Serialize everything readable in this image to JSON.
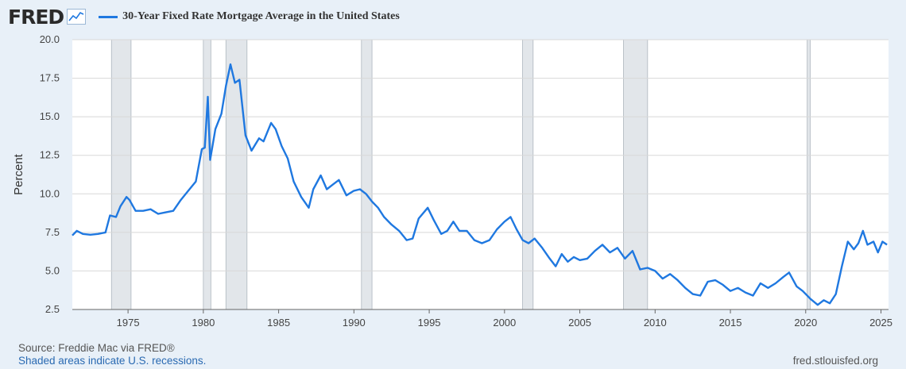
{
  "header": {
    "logo": "FRED",
    "series_title": "30-Year Fixed Rate Mortgage Average in the United States"
  },
  "footer": {
    "source": "Source: Freddie Mac via FRED®",
    "recession_note": "Shaded areas indicate U.S. recessions.",
    "site": "fred.stlouisfed.org"
  },
  "colors": {
    "series": "#1f78e0",
    "recession_shade": "#e2e6ea",
    "grid": "#d8d8d8",
    "background": "#e8f0f8",
    "plot_background": "#ffffff"
  },
  "chart_data": {
    "type": "line",
    "title": "30-Year Fixed Rate Mortgage Average in the United States",
    "ylabel": "Percent",
    "xlabel": "",
    "xlim": [
      1971.3,
      2025.5
    ],
    "ylim": [
      2.5,
      20.0
    ],
    "y_ticks": [
      "2.5",
      "5.0",
      "7.5",
      "10.0",
      "12.5",
      "15.0",
      "17.5",
      "20.0"
    ],
    "x_ticks": [
      "1975",
      "1980",
      "1985",
      "1990",
      "1995",
      "2000",
      "2005",
      "2010",
      "2015",
      "2020",
      "2025"
    ],
    "grid": true,
    "recessions": [
      [
        1973.9,
        1975.2
      ],
      [
        1980.0,
        1980.5
      ],
      [
        1981.5,
        1982.9
      ],
      [
        1990.5,
        1991.2
      ],
      [
        2001.2,
        2001.9
      ],
      [
        2007.9,
        2009.5
      ],
      [
        2020.1,
        2020.3
      ]
    ],
    "series": [
      {
        "name": "30-Year Fixed Rate Mortgage Average in the United States",
        "points": [
          [
            1971.3,
            7.3
          ],
          [
            1971.6,
            7.6
          ],
          [
            1972.0,
            7.4
          ],
          [
            1972.5,
            7.35
          ],
          [
            1973.0,
            7.4
          ],
          [
            1973.5,
            7.5
          ],
          [
            1973.8,
            8.6
          ],
          [
            1974.2,
            8.5
          ],
          [
            1974.5,
            9.2
          ],
          [
            1974.9,
            9.8
          ],
          [
            1975.1,
            9.6
          ],
          [
            1975.5,
            8.9
          ],
          [
            1976.0,
            8.9
          ],
          [
            1976.5,
            9.0
          ],
          [
            1977.0,
            8.7
          ],
          [
            1977.5,
            8.8
          ],
          [
            1978.0,
            8.9
          ],
          [
            1978.5,
            9.6
          ],
          [
            1979.0,
            10.2
          ],
          [
            1979.5,
            10.8
          ],
          [
            1979.9,
            12.9
          ],
          [
            1980.1,
            13.0
          ],
          [
            1980.3,
            16.3
          ],
          [
            1980.45,
            12.2
          ],
          [
            1980.8,
            14.2
          ],
          [
            1981.2,
            15.2
          ],
          [
            1981.5,
            17.0
          ],
          [
            1981.8,
            18.4
          ],
          [
            1982.1,
            17.2
          ],
          [
            1982.4,
            17.4
          ],
          [
            1982.8,
            13.8
          ],
          [
            1983.2,
            12.8
          ],
          [
            1983.7,
            13.6
          ],
          [
            1984.0,
            13.4
          ],
          [
            1984.5,
            14.6
          ],
          [
            1984.8,
            14.2
          ],
          [
            1985.2,
            13.1
          ],
          [
            1985.6,
            12.3
          ],
          [
            1986.0,
            10.8
          ],
          [
            1986.5,
            9.8
          ],
          [
            1987.0,
            9.1
          ],
          [
            1987.3,
            10.3
          ],
          [
            1987.8,
            11.2
          ],
          [
            1988.2,
            10.3
          ],
          [
            1988.6,
            10.6
          ],
          [
            1989.0,
            10.9
          ],
          [
            1989.5,
            9.9
          ],
          [
            1990.0,
            10.2
          ],
          [
            1990.4,
            10.3
          ],
          [
            1990.8,
            10.0
          ],
          [
            1991.2,
            9.5
          ],
          [
            1991.6,
            9.1
          ],
          [
            1992.0,
            8.5
          ],
          [
            1992.5,
            8.0
          ],
          [
            1993.0,
            7.6
          ],
          [
            1993.5,
            7.0
          ],
          [
            1993.9,
            7.1
          ],
          [
            1994.3,
            8.4
          ],
          [
            1994.9,
            9.1
          ],
          [
            1995.3,
            8.3
          ],
          [
            1995.8,
            7.4
          ],
          [
            1996.2,
            7.6
          ],
          [
            1996.6,
            8.2
          ],
          [
            1997.0,
            7.6
          ],
          [
            1997.5,
            7.6
          ],
          [
            1998.0,
            7.0
          ],
          [
            1998.5,
            6.8
          ],
          [
            1999.0,
            7.0
          ],
          [
            1999.5,
            7.7
          ],
          [
            2000.0,
            8.2
          ],
          [
            2000.4,
            8.5
          ],
          [
            2000.8,
            7.7
          ],
          [
            2001.2,
            7.0
          ],
          [
            2001.6,
            6.8
          ],
          [
            2002.0,
            7.1
          ],
          [
            2002.5,
            6.5
          ],
          [
            2003.0,
            5.8
          ],
          [
            2003.4,
            5.3
          ],
          [
            2003.8,
            6.1
          ],
          [
            2004.2,
            5.6
          ],
          [
            2004.6,
            5.9
          ],
          [
            2005.0,
            5.7
          ],
          [
            2005.5,
            5.8
          ],
          [
            2006.0,
            6.3
          ],
          [
            2006.5,
            6.7
          ],
          [
            2007.0,
            6.2
          ],
          [
            2007.5,
            6.5
          ],
          [
            2008.0,
            5.8
          ],
          [
            2008.5,
            6.3
          ],
          [
            2009.0,
            5.1
          ],
          [
            2009.5,
            5.2
          ],
          [
            2010.0,
            5.0
          ],
          [
            2010.5,
            4.5
          ],
          [
            2011.0,
            4.8
          ],
          [
            2011.5,
            4.4
          ],
          [
            2012.0,
            3.9
          ],
          [
            2012.5,
            3.5
          ],
          [
            2013.0,
            3.4
          ],
          [
            2013.5,
            4.3
          ],
          [
            2014.0,
            4.4
          ],
          [
            2014.5,
            4.1
          ],
          [
            2015.0,
            3.7
          ],
          [
            2015.5,
            3.9
          ],
          [
            2016.0,
            3.6
          ],
          [
            2016.5,
            3.4
          ],
          [
            2017.0,
            4.2
          ],
          [
            2017.5,
            3.9
          ],
          [
            2018.0,
            4.2
          ],
          [
            2018.5,
            4.6
          ],
          [
            2018.9,
            4.9
          ],
          [
            2019.4,
            4.0
          ],
          [
            2019.8,
            3.7
          ],
          [
            2020.3,
            3.2
          ],
          [
            2020.8,
            2.8
          ],
          [
            2021.2,
            3.1
          ],
          [
            2021.6,
            2.9
          ],
          [
            2022.0,
            3.5
          ],
          [
            2022.4,
            5.3
          ],
          [
            2022.8,
            6.9
          ],
          [
            2023.2,
            6.4
          ],
          [
            2023.5,
            6.8
          ],
          [
            2023.8,
            7.6
          ],
          [
            2024.1,
            6.7
          ],
          [
            2024.5,
            6.9
          ],
          [
            2024.8,
            6.2
          ],
          [
            2025.1,
            6.9
          ],
          [
            2025.4,
            6.7
          ]
        ]
      }
    ]
  }
}
